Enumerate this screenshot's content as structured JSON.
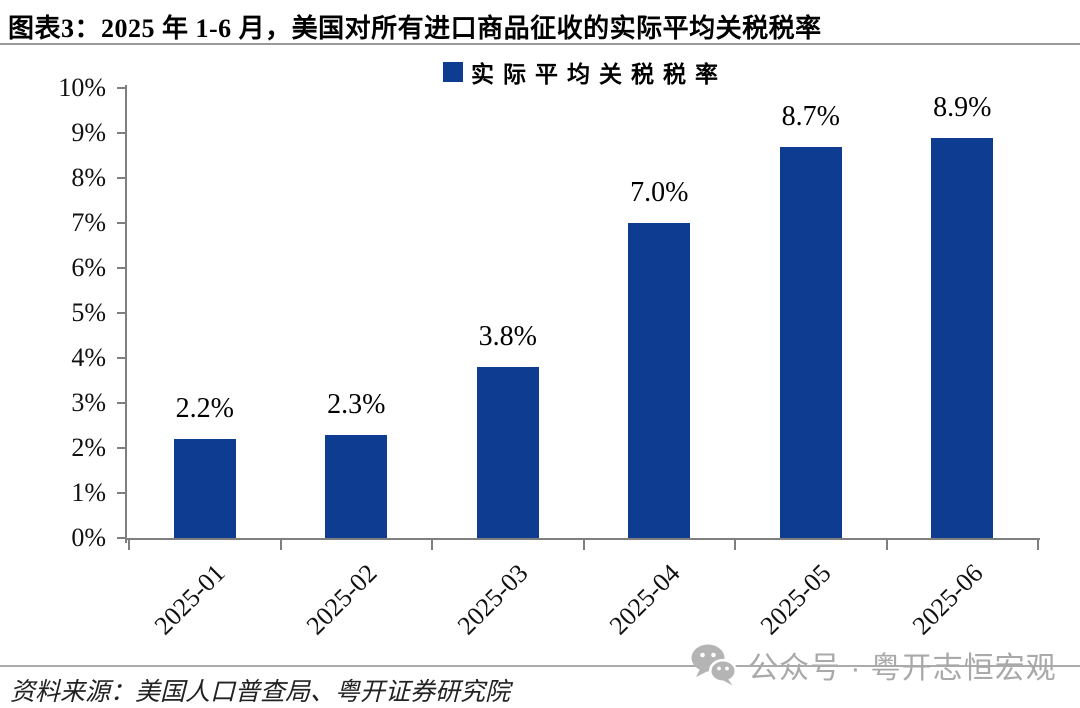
{
  "header": {
    "title": "图表3：2025 年 1-6 月，美国对所有进口商品征收的实际平均关税税率"
  },
  "legend": {
    "label": "实际平均关税税率"
  },
  "chart_data": {
    "type": "bar",
    "title": "实际平均关税税率",
    "categories": [
      "2025-01",
      "2025-02",
      "2025-03",
      "2025-04",
      "2025-05",
      "2025-06"
    ],
    "values": [
      2.2,
      2.3,
      3.8,
      7.0,
      8.7,
      8.9
    ],
    "value_labels": [
      "2.2%",
      "2.3%",
      "3.8%",
      "7.0%",
      "8.7%",
      "8.9%"
    ],
    "ylim": [
      0,
      10
    ],
    "y_tick_labels": [
      "0%",
      "1%",
      "2%",
      "3%",
      "4%",
      "5%",
      "6%",
      "7%",
      "8%",
      "9%",
      "10%"
    ],
    "bar_color": "#0E3C90",
    "axis_color": "#7F7F7F",
    "grid": false,
    "legend_position": "top-center"
  },
  "footer": {
    "source": "资料来源：美国人口普查局、粤开证券研究院",
    "watermark": "公众号 · 粤开志恒宏观"
  }
}
